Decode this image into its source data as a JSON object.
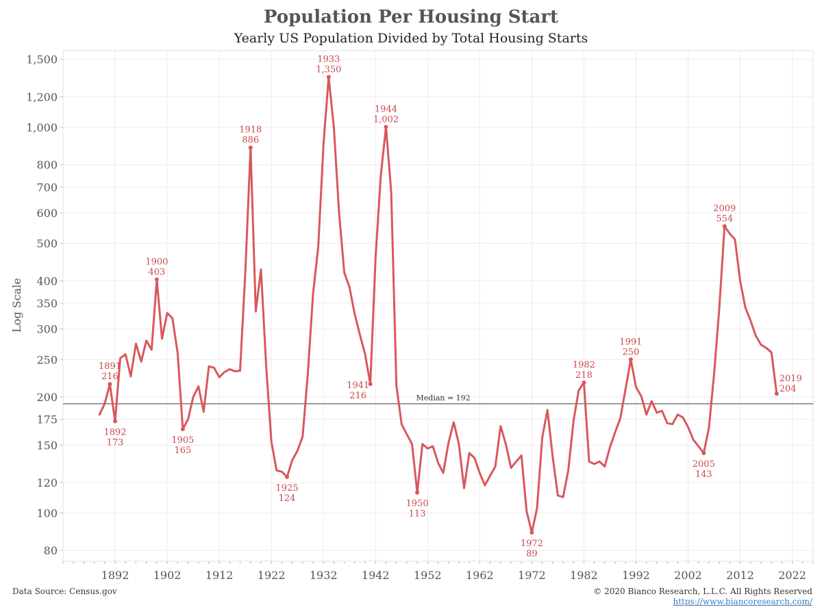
{
  "header": {
    "title": "Population Per Housing Start",
    "subtitle": "Yearly US Population Divided by Total Housing Starts"
  },
  "footer": {
    "source": "Data Source: Census.gov",
    "copyright": "© 2020 Bianco Research, L.L.C. All Rights Reserved",
    "link": "https://www.biancoresearch.com/"
  },
  "colors": {
    "series": "#d9575b",
    "annotation": "#c9474b",
    "median_line": "#7a7a7a",
    "grid": "#ececec",
    "axis_text": "#555555"
  },
  "chart_data": {
    "type": "line",
    "title": "Population Per Housing Start",
    "subtitle": "Yearly US Population Divided by Total Housing Starts",
    "xlabel": "",
    "ylabel": "Log Scale",
    "y_scale": "log",
    "ylim": [
      75,
      1580
    ],
    "xlim": [
      1882,
      2026
    ],
    "grid": true,
    "x_ticks": [
      1892,
      1902,
      1912,
      1922,
      1932,
      1942,
      1952,
      1962,
      1972,
      1982,
      1992,
      2002,
      2012,
      2022
    ],
    "y_ticks": [
      80,
      100,
      120,
      150,
      175,
      200,
      250,
      300,
      350,
      400,
      500,
      600,
      700,
      800,
      1000,
      1200,
      1500
    ],
    "y_tick_labels": [
      "80",
      "100",
      "120",
      "150",
      "175",
      "200",
      "250",
      "300",
      "350",
      "400",
      "500",
      "600",
      "700",
      "800",
      "1,000",
      "1,200",
      "1,500"
    ],
    "median": {
      "value": 192,
      "label": "Median = 192"
    },
    "series": [
      {
        "x": [
          1889,
          1890,
          1891,
          1892,
          1893,
          1894,
          1895,
          1896,
          1897,
          1898,
          1899,
          1900,
          1901,
          1902,
          1903,
          1904,
          1905,
          1906,
          1907,
          1908,
          1909,
          1910,
          1911,
          1912,
          1913,
          1914,
          1915,
          1916,
          1917,
          1918,
          1919,
          1920,
          1921,
          1922,
          1923,
          1924,
          1925,
          1926,
          1927,
          1928,
          1929,
          1930,
          1931,
          1932,
          1933,
          1934,
          1935,
          1936,
          1937,
          1938,
          1939,
          1940,
          1941,
          1942,
          1943,
          1944,
          1945,
          1946,
          1947,
          1948,
          1949,
          1950,
          1951,
          1952,
          1953,
          1954,
          1955,
          1956,
          1957,
          1958,
          1959,
          1960,
          1961,
          1962,
          1963,
          1964,
          1965,
          1966,
          1967,
          1968,
          1969,
          1970,
          1971,
          1972,
          1973,
          1974,
          1975,
          1976,
          1977,
          1978,
          1979,
          1980,
          1981,
          1982,
          1983,
          1984,
          1985,
          1986,
          1987,
          1988,
          1989,
          1990,
          1991,
          1992,
          1993,
          1994,
          1995,
          1996,
          1997,
          1998,
          1999,
          2000,
          2001,
          2002,
          2003,
          2004,
          2005,
          2006,
          2007,
          2008,
          2009,
          2010,
          2011,
          2012,
          2013,
          2014,
          2015,
          2016,
          2017,
          2018,
          2019
        ],
        "values": [
          180,
          192,
          216,
          173,
          252,
          258,
          226,
          275,
          247,
          280,
          265,
          403,
          283,
          330,
          320,
          260,
          165,
          175,
          200,
          213,
          183,
          240,
          238,
          225,
          232,
          236,
          233,
          234,
          420,
          886,
          333,
          428,
          240,
          153,
          129,
          128,
          124,
          137,
          145,
          158,
          230,
          370,
          490,
          900,
          1350,
          1000,
          600,
          420,
          385,
          328,
          290,
          258,
          216,
          460,
          750,
          1002,
          680,
          214,
          170,
          160,
          151,
          113,
          151,
          147,
          149,
          135,
          127,
          152,
          172,
          151,
          116,
          143,
          139,
          127,
          118,
          125,
          132,
          168,
          151,
          131,
          136,
          141,
          101,
          89,
          103,
          157,
          185,
          140,
          111,
          110,
          129,
          173,
          208,
          218,
          136,
          134,
          136,
          132,
          148,
          162,
          176,
          210,
          250,
          212,
          201,
          180,
          195,
          182,
          184,
          171,
          170,
          180,
          177,
          167,
          155,
          149,
          143,
          166,
          230,
          340,
          554,
          530,
          512,
          400,
          341,
          315,
          288,
          273,
          268,
          261,
          204
        ]
      }
    ],
    "annotations": [
      {
        "year": 1891,
        "value": 216,
        "label_year": "1891",
        "label_value": "216",
        "pos": "above"
      },
      {
        "year": 1892,
        "value": 173,
        "label_year": "1892",
        "label_value": "173",
        "pos": "below"
      },
      {
        "year": 1900,
        "value": 403,
        "label_year": "1900",
        "label_value": "403",
        "pos": "above"
      },
      {
        "year": 1905,
        "value": 165,
        "label_year": "1905",
        "label_value": "165",
        "pos": "below"
      },
      {
        "year": 1918,
        "value": 886,
        "label_year": "1918",
        "label_value": "886",
        "pos": "above"
      },
      {
        "year": 1925,
        "value": 124,
        "label_year": "1925",
        "label_value": "124",
        "pos": "below"
      },
      {
        "year": 1933,
        "value": 1350,
        "label_year": "1933",
        "label_value": "1,350",
        "pos": "above"
      },
      {
        "year": 1941,
        "value": 216,
        "label_year": "1941",
        "label_value": "216",
        "pos": "below-left"
      },
      {
        "year": 1944,
        "value": 1002,
        "label_year": "1944",
        "label_value": "1,002",
        "pos": "above"
      },
      {
        "year": 1950,
        "value": 113,
        "label_year": "1950",
        "label_value": "113",
        "pos": "below"
      },
      {
        "year": 1972,
        "value": 89,
        "label_year": "1972",
        "label_value": "89",
        "pos": "below"
      },
      {
        "year": 1982,
        "value": 218,
        "label_year": "1982",
        "label_value": "218",
        "pos": "above"
      },
      {
        "year": 1991,
        "value": 250,
        "label_year": "1991",
        "label_value": "250",
        "pos": "above"
      },
      {
        "year": 2005,
        "value": 143,
        "label_year": "2005",
        "label_value": "143",
        "pos": "below"
      },
      {
        "year": 2009,
        "value": 554,
        "label_year": "2009",
        "label_value": "554",
        "pos": "above"
      },
      {
        "year": 2019,
        "value": 204,
        "label_year": "2019",
        "label_value": "204",
        "pos": "right"
      }
    ]
  }
}
